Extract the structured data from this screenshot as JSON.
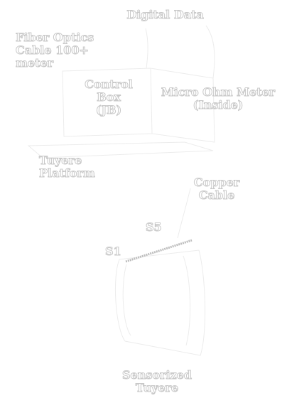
{
  "diagram": {
    "labels": {
      "digital_data": "Digital Data",
      "fiber_optics": "Fiber Optics\nCable 100+ meter",
      "control_box": "Control\nBox\n(JB)",
      "micro_ohm_meter": "Micro Ohm Meter\n(Inside)",
      "tuyere_platform": "Tuyere Platform",
      "copper_cable": "Copper\nCable",
      "s5": "S5",
      "s1": "S1",
      "sensorized_tuyere": "Sensorized Tuyere"
    },
    "colors": {
      "text_outline": "#c9c9c9",
      "line": "#e9e9e9",
      "sensor_strip": "#b8b8b8",
      "background": "#ffffff"
    }
  }
}
